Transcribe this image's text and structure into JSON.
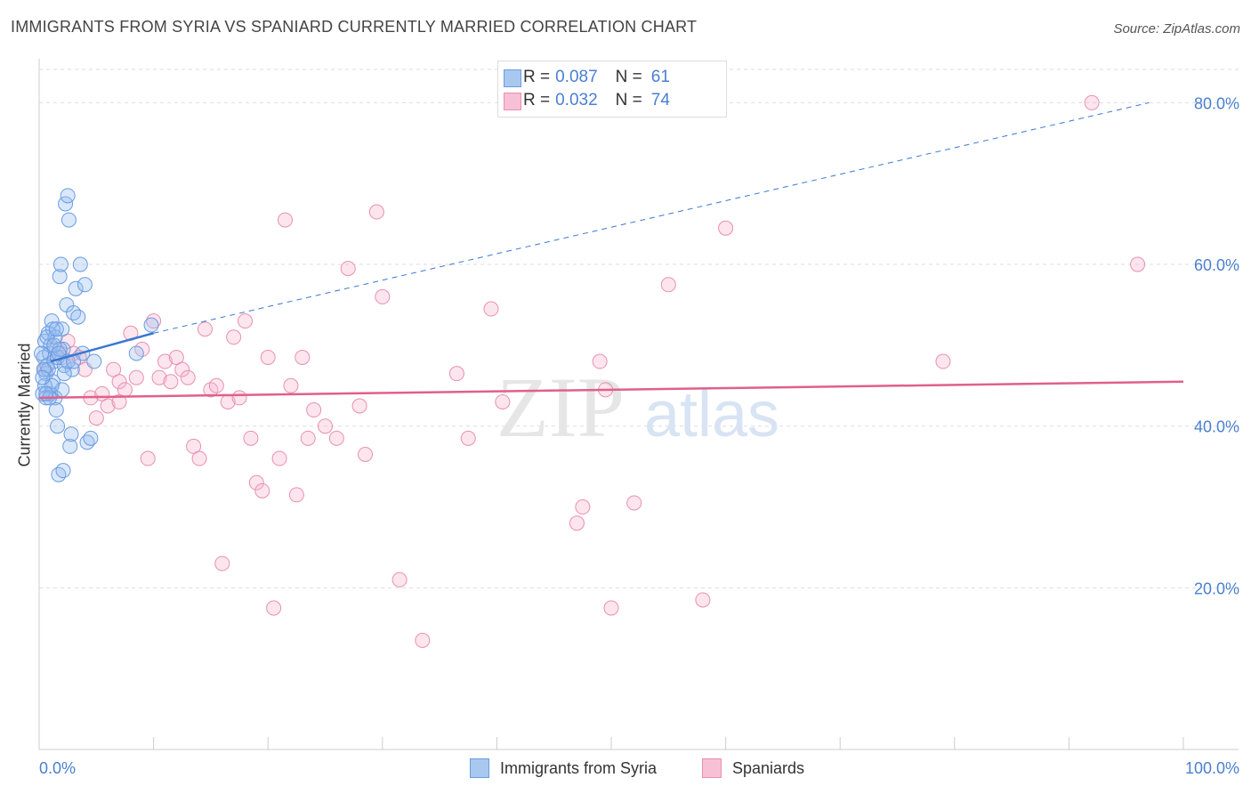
{
  "header": {
    "title": "IMMIGRANTS FROM SYRIA VS SPANIARD CURRENTLY MARRIED CORRELATION CHART",
    "source": "Source: ZipAtlas.com"
  },
  "watermark": {
    "zip": "ZIP",
    "atlas": "atlas"
  },
  "legend_top": {
    "rows": [
      {
        "r_label": "R =",
        "r_value": "0.087",
        "n_label": "N =",
        "n_value": "61",
        "color": "#a8c8f0",
        "border": "#6a9be0"
      },
      {
        "r_label": "R =",
        "r_value": "0.032",
        "n_label": "N =",
        "n_value": "74",
        "color": "#f8c0d4",
        "border": "#e890b0"
      }
    ]
  },
  "legend_bottom": {
    "items": [
      {
        "label": "Immigrants from Syria",
        "color": "#a8c8f0",
        "border": "#6a9be0"
      },
      {
        "label": "Spaniards",
        "color": "#f8c0d4",
        "border": "#e890b0"
      }
    ]
  },
  "colors": {
    "blue_fill": "rgba(150,190,240,0.35)",
    "blue_stroke": "#6a9be0",
    "blue_line": "#3a78d0",
    "pink_fill": "rgba(248,180,205,0.35)",
    "pink_stroke": "#e890b0",
    "pink_line": "#e0608a",
    "grid": "#dddddd",
    "tick_text": "#4a7fd1"
  },
  "chart_data": {
    "type": "scatter",
    "title": "IMMIGRANTS FROM SYRIA VS SPANIARD CURRENTLY MARRIED CORRELATION CHART",
    "xlabel": "",
    "ylabel": "Currently Married",
    "xlim": [
      0,
      100
    ],
    "ylim": [
      0,
      85
    ],
    "x_tick_labels": [
      "0.0%",
      "100.0%"
    ],
    "y_ticks": [
      20,
      40,
      60,
      80
    ],
    "y_tick_labels": [
      "20.0%",
      "40.0%",
      "60.0%",
      "80.0%"
    ],
    "grid": true,
    "legend_position": "top-center",
    "series": [
      {
        "name": "Immigrants from Syria",
        "points": [
          [
            0.3,
            44.0
          ],
          [
            0.4,
            48.5
          ],
          [
            0.5,
            50.5
          ],
          [
            0.6,
            46.5
          ],
          [
            0.7,
            47.5
          ],
          [
            0.8,
            51.5
          ],
          [
            0.9,
            49.0
          ],
          [
            1.0,
            44.0
          ],
          [
            1.1,
            53.0
          ],
          [
            1.2,
            45.5
          ],
          [
            1.3,
            48.0
          ],
          [
            1.4,
            43.5
          ],
          [
            1.5,
            42.0
          ],
          [
            1.6,
            40.0
          ],
          [
            1.7,
            34.0
          ],
          [
            1.8,
            58.5
          ],
          [
            1.9,
            60.0
          ],
          [
            2.0,
            52.0
          ],
          [
            2.1,
            49.5
          ],
          [
            2.2,
            47.5
          ],
          [
            2.3,
            67.5
          ],
          [
            2.4,
            55.0
          ],
          [
            2.5,
            68.5
          ],
          [
            2.6,
            65.5
          ],
          [
            2.7,
            37.5
          ],
          [
            2.8,
            39.0
          ],
          [
            2.9,
            47.0
          ],
          [
            3.0,
            54.0
          ],
          [
            3.2,
            57.0
          ],
          [
            3.4,
            53.5
          ],
          [
            3.6,
            60.0
          ],
          [
            3.8,
            49.0
          ],
          [
            4.0,
            57.5
          ],
          [
            4.2,
            38.0
          ],
          [
            4.5,
            38.5
          ],
          [
            4.8,
            48.0
          ],
          [
            0.5,
            45.0
          ],
          [
            0.6,
            43.5
          ],
          [
            0.8,
            47.0
          ],
          [
            1.0,
            50.0
          ],
          [
            1.2,
            52.0
          ],
          [
            1.4,
            51.0
          ],
          [
            1.6,
            48.5
          ],
          [
            1.8,
            49.5
          ],
          [
            2.0,
            44.5
          ],
          [
            2.2,
            46.5
          ],
          [
            0.4,
            47.0
          ],
          [
            0.7,
            51.0
          ],
          [
            0.9,
            43.5
          ],
          [
            1.1,
            45.0
          ],
          [
            1.3,
            50.0
          ],
          [
            1.5,
            52.0
          ],
          [
            1.7,
            49.0
          ],
          [
            2.5,
            48.0
          ],
          [
            0.3,
            46.0
          ],
          [
            0.2,
            49.0
          ],
          [
            0.6,
            44.0
          ],
          [
            8.5,
            49.0
          ],
          [
            9.8,
            52.5
          ],
          [
            3.0,
            48.0
          ],
          [
            2.1,
            34.5
          ]
        ],
        "trend": {
          "x0": 1.0,
          "y0": 48.0,
          "x1": 10.0,
          "y1": 51.5,
          "dashed_to_x": 97,
          "dashed_to_y": 80.0
        }
      },
      {
        "name": "Spaniards",
        "points": [
          [
            0.5,
            47.0
          ],
          [
            1.0,
            44.0
          ],
          [
            1.5,
            49.5
          ],
          [
            2.0,
            48.5
          ],
          [
            2.5,
            50.5
          ],
          [
            3.0,
            49.0
          ],
          [
            3.5,
            48.5
          ],
          [
            4.0,
            47.0
          ],
          [
            4.5,
            43.5
          ],
          [
            5.0,
            41.0
          ],
          [
            5.5,
            44.0
          ],
          [
            6.0,
            42.5
          ],
          [
            6.5,
            47.0
          ],
          [
            7.0,
            45.5
          ],
          [
            7.5,
            44.5
          ],
          [
            8.0,
            51.5
          ],
          [
            8.5,
            46.0
          ],
          [
            9.0,
            49.5
          ],
          [
            9.5,
            36.0
          ],
          [
            10.0,
            53.0
          ],
          [
            10.5,
            46.0
          ],
          [
            11.0,
            48.0
          ],
          [
            11.5,
            45.5
          ],
          [
            12.0,
            48.5
          ],
          [
            12.5,
            47.0
          ],
          [
            13.0,
            46.0
          ],
          [
            13.5,
            37.5
          ],
          [
            14.0,
            36.0
          ],
          [
            14.5,
            52.0
          ],
          [
            15.0,
            44.5
          ],
          [
            15.5,
            45.0
          ],
          [
            16.0,
            23.0
          ],
          [
            16.5,
            43.0
          ],
          [
            17.0,
            51.0
          ],
          [
            17.5,
            43.5
          ],
          [
            18.0,
            53.0
          ],
          [
            18.5,
            38.5
          ],
          [
            19.0,
            33.0
          ],
          [
            19.5,
            32.0
          ],
          [
            20.0,
            48.5
          ],
          [
            20.5,
            17.5
          ],
          [
            21.0,
            36.0
          ],
          [
            21.5,
            65.5
          ],
          [
            22.0,
            45.0
          ],
          [
            22.5,
            31.5
          ],
          [
            23.0,
            48.5
          ],
          [
            23.5,
            38.5
          ],
          [
            24.0,
            42.0
          ],
          [
            25.0,
            40.0
          ],
          [
            26.0,
            38.5
          ],
          [
            27.0,
            59.5
          ],
          [
            28.0,
            42.5
          ],
          [
            28.5,
            36.5
          ],
          [
            29.5,
            66.5
          ],
          [
            30.0,
            56.0
          ],
          [
            31.5,
            21.0
          ],
          [
            33.5,
            13.5
          ],
          [
            36.5,
            46.5
          ],
          [
            37.5,
            38.5
          ],
          [
            39.5,
            54.5
          ],
          [
            40.5,
            43.0
          ],
          [
            47.0,
            28.0
          ],
          [
            47.5,
            30.0
          ],
          [
            49.0,
            48.0
          ],
          [
            49.5,
            44.5
          ],
          [
            50.0,
            17.5
          ],
          [
            52.0,
            30.5
          ],
          [
            55.0,
            57.5
          ],
          [
            58.0,
            18.5
          ],
          [
            60.0,
            64.5
          ],
          [
            79.0,
            48.0
          ],
          [
            92.0,
            80.0
          ],
          [
            96.0,
            60.0
          ],
          [
            7.0,
            43.0
          ]
        ],
        "trend": {
          "x0": 0,
          "y0": 43.5,
          "x1": 100,
          "y1": 45.5
        }
      }
    ]
  }
}
